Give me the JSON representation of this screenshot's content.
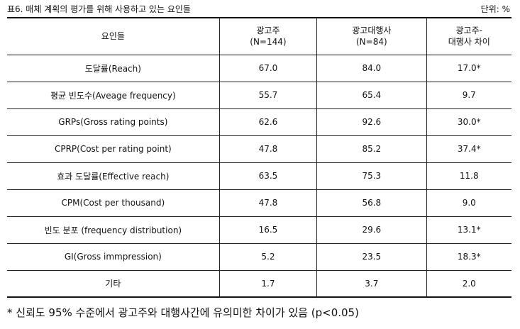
{
  "caption": "표6. 매체 계획의 평가를 위해 사용하고 있는 요인들",
  "unit": "단위: %",
  "table": {
    "headers": [
      {
        "lines": [
          "요인들"
        ]
      },
      {
        "lines": [
          "광고주",
          "(N=144)"
        ]
      },
      {
        "lines": [
          "광고대행사",
          "(N=84)"
        ]
      },
      {
        "lines": [
          "광고주-",
          "대행사 차이"
        ]
      }
    ],
    "rows": [
      {
        "factor": "도달률(Reach)",
        "advertiser": "67.0",
        "agency": "84.0",
        "diff": "17.0*"
      },
      {
        "factor": "평균 빈도수(Aveage frequency)",
        "advertiser": "55.7",
        "agency": "65.4",
        "diff": "9.7"
      },
      {
        "factor": "GRPs(Gross rating points)",
        "advertiser": "62.6",
        "agency": "92.6",
        "diff": "30.0*"
      },
      {
        "factor": "CPRP(Cost per rating point)",
        "advertiser": "47.8",
        "agency": "85.2",
        "diff": "37.4*"
      },
      {
        "factor": "효과 도달률(Effective reach)",
        "advertiser": "63.5",
        "agency": "75.3",
        "diff": "11.8"
      },
      {
        "factor": "CPM(Cost per thousand)",
        "advertiser": "47.8",
        "agency": "56.8",
        "diff": "9.0"
      },
      {
        "factor": "빈도 분포 (frequency distribution)",
        "advertiser": "16.5",
        "agency": "29.6",
        "diff": "13.1*"
      },
      {
        "factor": "GI(Gross immpression)",
        "advertiser": "5.2",
        "agency": "23.5",
        "diff": "18.3*"
      },
      {
        "factor": "기타",
        "advertiser": "1.7",
        "agency": "3.7",
        "diff": "2.0"
      }
    ]
  },
  "footnote": "* 신뢰도 95% 수준에서 광고주와 대행사간에 유의미한 차이가 있음 (p<0.05)"
}
